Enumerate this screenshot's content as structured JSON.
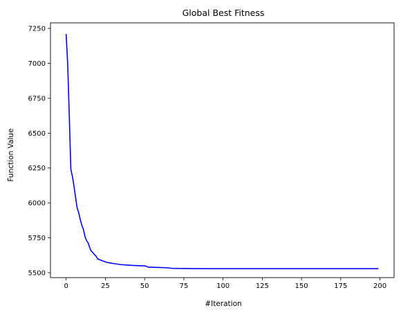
{
  "chart_data": {
    "type": "line",
    "title": "Global Best Fitness",
    "xlabel": "#Iteration",
    "ylabel": "Function Value",
    "xlim": [
      -10,
      209
    ],
    "ylim": [
      5465,
      7290
    ],
    "xticks": [
      0,
      25,
      50,
      75,
      100,
      125,
      150,
      175,
      200
    ],
    "yticks": [
      5500,
      5750,
      6000,
      6250,
      6500,
      6750,
      7000,
      7250
    ],
    "grid": false,
    "series": [
      {
        "color": "#0000ff",
        "x": [
          0,
          1,
          2,
          3,
          4,
          5,
          6,
          7,
          8,
          9,
          10,
          11,
          12,
          13,
          14,
          15,
          16,
          17,
          18,
          19,
          20,
          22,
          24,
          26,
          28,
          30,
          32,
          35,
          40,
          45,
          50,
          51,
          52,
          55,
          60,
          65,
          67,
          70,
          80,
          90,
          100,
          125,
          150,
          175,
          199
        ],
        "y": [
          7210,
          6990,
          6620,
          6240,
          6190,
          6120,
          6040,
          5965,
          5930,
          5880,
          5840,
          5810,
          5760,
          5730,
          5715,
          5680,
          5655,
          5645,
          5630,
          5620,
          5600,
          5590,
          5582,
          5574,
          5570,
          5566,
          5563,
          5558,
          5554,
          5551,
          5549,
          5547,
          5541,
          5539,
          5537,
          5535,
          5532,
          5531,
          5530,
          5529,
          5529,
          5529,
          5529,
          5529,
          5529
        ]
      }
    ]
  }
}
